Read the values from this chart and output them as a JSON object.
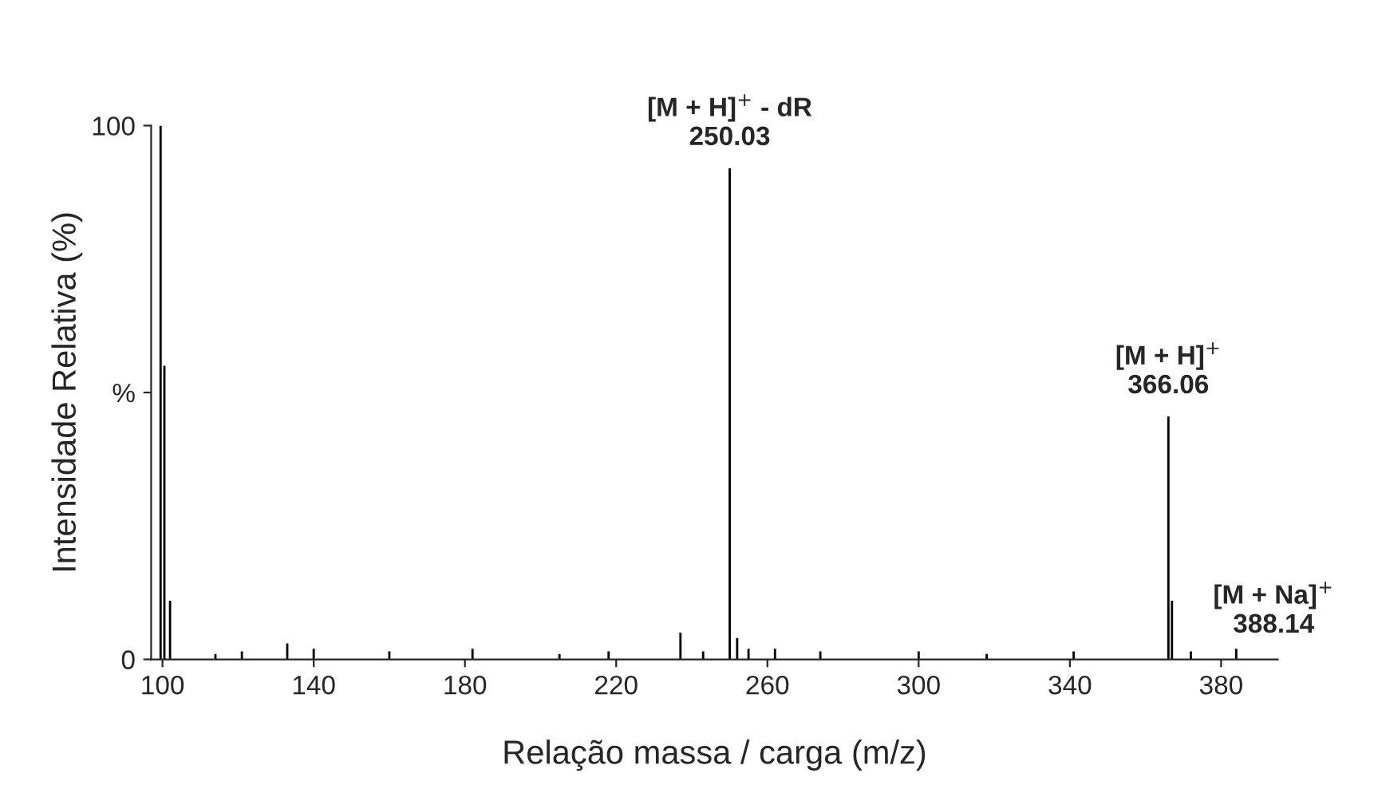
{
  "chart_data": {
    "type": "bar",
    "xlabel": "Relação massa / carga (m/z)",
    "ylabel": "Intensidade Relativa (%)",
    "x": [
      99.5,
      100.5,
      102,
      114,
      121,
      133,
      140,
      160,
      182,
      205,
      218,
      237,
      243,
      250.03,
      252,
      255,
      262,
      274,
      300,
      318,
      341,
      366.06,
      367,
      372,
      384
    ],
    "values": [
      100,
      55,
      11,
      1,
      1.5,
      3,
      2,
      1.5,
      2,
      1,
      1.5,
      5,
      1.5,
      92,
      4,
      2,
      2,
      1.5,
      1.5,
      1,
      1.5,
      45.5,
      11,
      1.5,
      2
    ],
    "color": "#000000",
    "xlim": [
      97,
      395
    ],
    "xticks": [
      100,
      140,
      180,
      220,
      260,
      300,
      340,
      380
    ],
    "ylim": [
      0,
      100
    ],
    "yticks": [
      0,
      {
        "value": 50,
        "label": "%"
      },
      100
    ],
    "grid": false,
    "legend": false,
    "annotations": [
      {
        "text": "[M + H]$^{+}$ - dR\n250.03",
        "x": 250.03,
        "y": 92
      },
      {
        "text": "[M + H]$^{+}$\n366.06",
        "x": 366.06,
        "y": 45.5
      },
      "[M + Na]$^{+}$\n388.14"
    ]
  }
}
